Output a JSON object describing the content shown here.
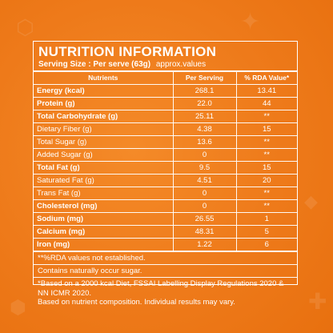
{
  "title": "NUTRITION INFORMATION",
  "serving": {
    "label": "Serving Size : Per serve (63g)",
    "approx": "approx.values"
  },
  "headers": {
    "nutrients": "Nutrients",
    "per_serving": "Per Serving",
    "rda": "% RDA Value*"
  },
  "rows": [
    {
      "name": "Energy (kcal)",
      "value": "268.1",
      "rda": "13.41",
      "bold": true
    },
    {
      "name": "Protein (g)",
      "value": "22.0",
      "rda": "44",
      "bold": true
    },
    {
      "name": "Total Carbohydrate (g)",
      "value": "25.11",
      "rda": "**",
      "bold": true
    },
    {
      "name": "Dietary Fiber (g)",
      "value": "4.38",
      "rda": "15",
      "bold": false
    },
    {
      "name": "Total Sugar (g)",
      "value": "13.6",
      "rda": "**",
      "bold": false
    },
    {
      "name": "Added Sugar (g)",
      "value": "0",
      "rda": "**",
      "bold": false
    },
    {
      "name": "Total Fat (g)",
      "value": "9.5",
      "rda": "15",
      "bold": true
    },
    {
      "name": "Saturated Fat (g)",
      "value": "4.51",
      "rda": "20",
      "bold": false
    },
    {
      "name": "Trans Fat (g)",
      "value": "0",
      "rda": "**",
      "bold": false
    },
    {
      "name": "Cholesterol (mg)",
      "value": "0",
      "rda": "**",
      "bold": true
    },
    {
      "name": "Sodium (mg)",
      "value": "26.55",
      "rda": "1",
      "bold": true
    },
    {
      "name": "Calcium (mg)",
      "value": "48.31",
      "rda": "5",
      "bold": true
    },
    {
      "name": "Iron (mg)",
      "value": "1.22",
      "rda": "6",
      "bold": true
    }
  ],
  "notes": {
    "rda_na": "**%RDA values not established.",
    "sugar": "Contains naturally occur sugar.",
    "basis": "*Based on a 2000 kcal Diet, FSSAI Labelling Display Regulations 2020 & NN ICMR 2020.",
    "composition": "Based on nutrient composition. Individual results may vary."
  }
}
